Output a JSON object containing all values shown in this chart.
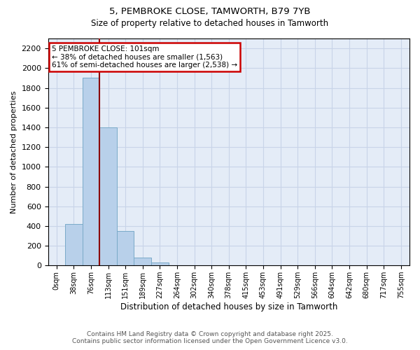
{
  "title_line1": "5, PEMBROKE CLOSE, TAMWORTH, B79 7YB",
  "title_line2": "Size of property relative to detached houses in Tamworth",
  "xlabel": "Distribution of detached houses by size in Tamworth",
  "ylabel": "Number of detached properties",
  "bar_labels": [
    "0sqm",
    "38sqm",
    "76sqm",
    "113sqm",
    "151sqm",
    "189sqm",
    "227sqm",
    "264sqm",
    "302sqm",
    "340sqm",
    "378sqm",
    "415sqm",
    "453sqm",
    "491sqm",
    "529sqm",
    "566sqm",
    "604sqm",
    "642sqm",
    "680sqm",
    "717sqm",
    "755sqm"
  ],
  "bar_values": [
    5,
    420,
    1900,
    1400,
    350,
    80,
    30,
    0,
    0,
    0,
    0,
    0,
    0,
    0,
    0,
    0,
    0,
    0,
    0,
    0,
    0
  ],
  "bar_color": "#b8d0ea",
  "bar_edge_color": "#7aaac8",
  "vline_color": "#8b0000",
  "annotation_text": "5 PEMBROKE CLOSE: 101sqm\n← 38% of detached houses are smaller (1,563)\n61% of semi-detached houses are larger (2,538) →",
  "annotation_box_edgecolor": "#cc0000",
  "annotation_facecolor": "white",
  "ylim": [
    0,
    2300
  ],
  "yticks": [
    0,
    200,
    400,
    600,
    800,
    1000,
    1200,
    1400,
    1600,
    1800,
    2000,
    2200
  ],
  "grid_color": "#c8d4e8",
  "bg_color": "#e4ecf7",
  "footer_line1": "Contains HM Land Registry data © Crown copyright and database right 2025.",
  "footer_line2": "Contains public sector information licensed under the Open Government Licence v3.0."
}
